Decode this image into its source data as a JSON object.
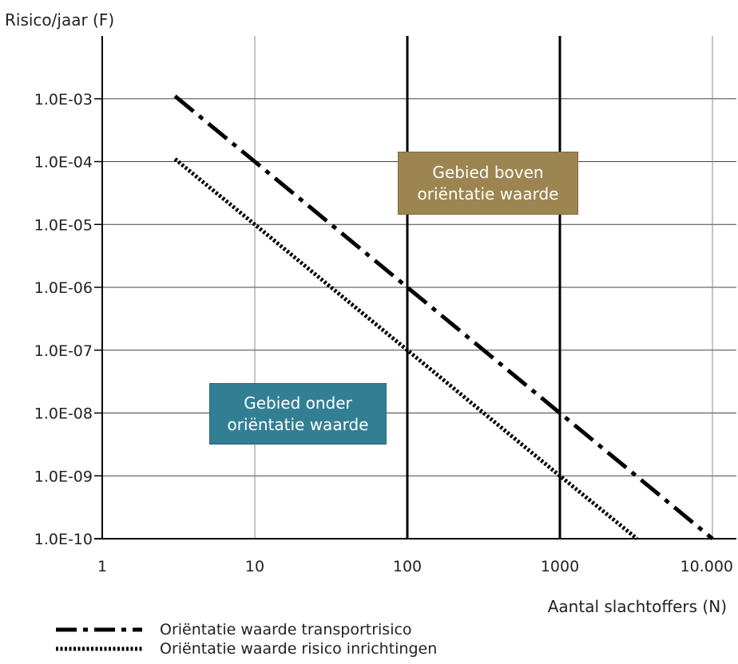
{
  "chart_data": {
    "type": "line",
    "xscale": "log",
    "yscale": "log",
    "xlim": [
      1,
      10000
    ],
    "ylim": [
      1e-10,
      0.01
    ],
    "xlabel": "Aantal slachtoffers (N)",
    "ylabel": "Risico/jaar (F)",
    "x_tick_values": [
      1,
      10,
      100,
      1000,
      10000
    ],
    "x_tick_labels": [
      "1",
      "10",
      "100",
      "1000",
      "10.000"
    ],
    "y_tick_values": [
      0.001,
      0.0001,
      1e-05,
      1e-06,
      1e-07,
      1e-08,
      1e-09,
      1e-10
    ],
    "y_tick_labels": [
      "1.0E-03",
      "1.0E-04",
      "1.0E-05",
      "1.0E-06",
      "1.0E-07",
      "1.0E-08",
      "1.0E-09",
      "1.0E-10"
    ],
    "grid": true,
    "vertical_reference_lines": [
      100,
      1000
    ],
    "series": [
      {
        "name": "Oriëntatie  waarde transportrisico",
        "style": "dash-dot",
        "color": "#000000",
        "x": [
          3,
          10,
          100,
          1000,
          10000
        ],
        "y": [
          0.0011,
          0.0001,
          1e-06,
          1e-08,
          1e-10
        ]
      },
      {
        "name": "Oriëntatie waarde risico inrichtingen",
        "style": "dotted",
        "color": "#000000",
        "x": [
          3,
          10,
          100,
          1000,
          3200
        ],
        "y": [
          0.00011,
          1e-05,
          1e-07,
          1e-09,
          1e-10
        ]
      }
    ],
    "annotations": [
      {
        "id": "above",
        "lines": [
          "Gebied boven",
          "oriëntatie waarde"
        ],
        "color": "#9c8550"
      },
      {
        "id": "below",
        "lines": [
          "Gebied onder",
          "oriëntatie waarde"
        ],
        "color": "#327f94"
      }
    ],
    "legend_position": "bottom-left"
  }
}
